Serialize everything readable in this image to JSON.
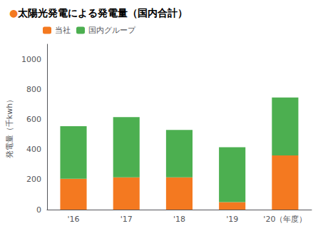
{
  "chart_data": {
    "type": "bar",
    "title": "●太陽光発電による発電量（国内合計）",
    "ylabel": "発電量（千kwh）",
    "categories": [
      "'16",
      "'17",
      "'18",
      "'19",
      "'20（年度）"
    ],
    "series": [
      {
        "name": "当社",
        "color": "#F47920",
        "values": [
          205,
          215,
          215,
          50,
          360
        ]
      },
      {
        "name": "国内グループ",
        "color": "#4CAF50",
        "values": [
          350,
          400,
          315,
          365,
          385
        ]
      }
    ],
    "stacked": true,
    "ylim": [
      0,
      1100
    ],
    "yticks": [
      0,
      200,
      400,
      600,
      800,
      1000
    ],
    "grid": false,
    "legend": "upper left"
  }
}
